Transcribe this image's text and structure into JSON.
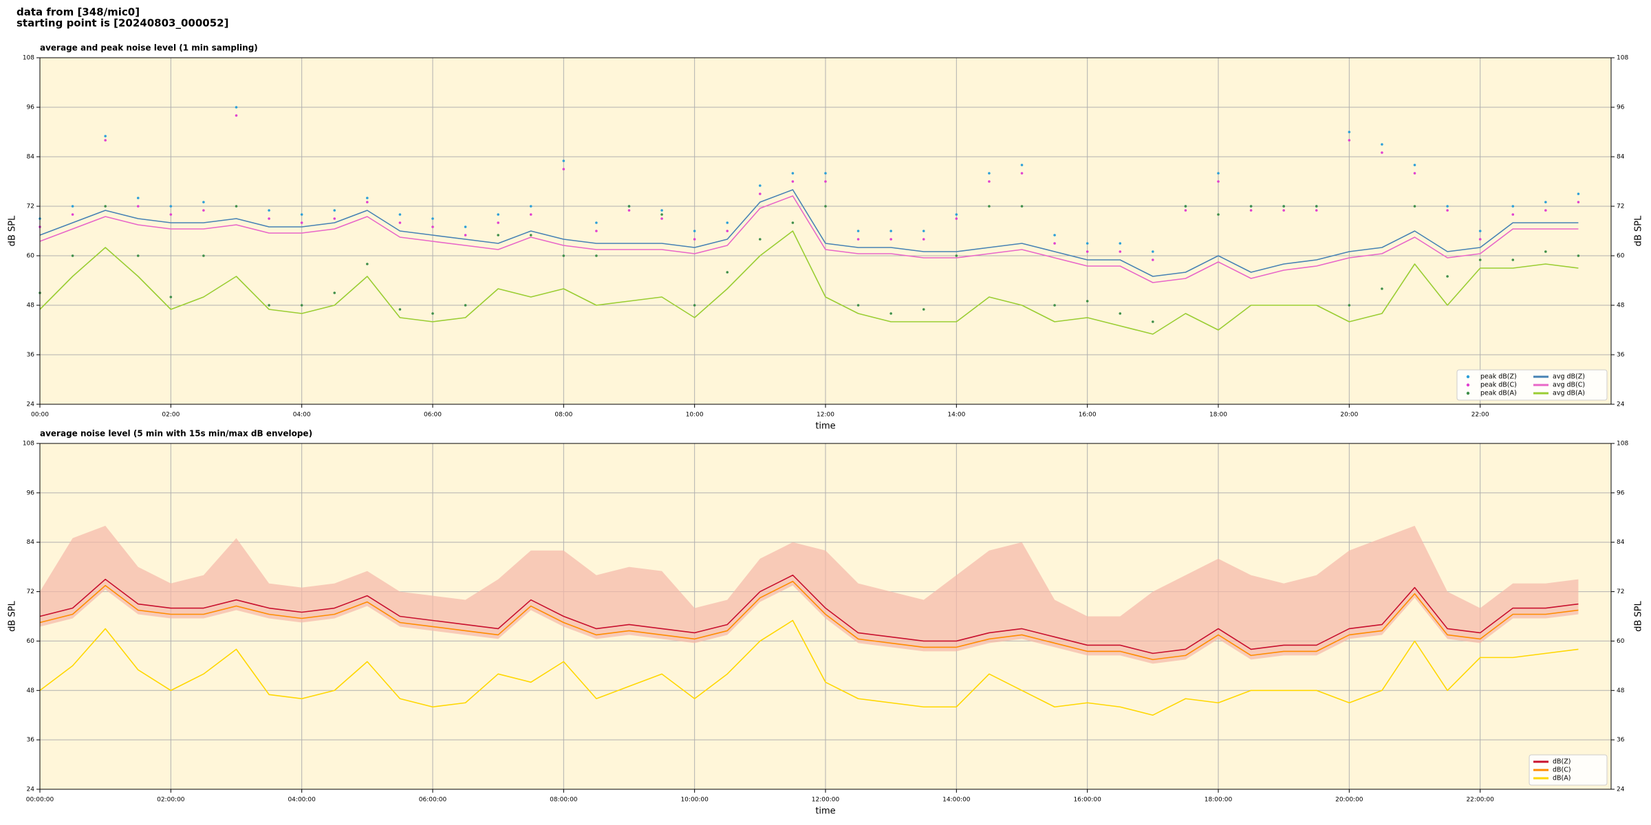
{
  "header": [
    "data from [348/mic0]",
    "starting point is [20240803_000052]"
  ],
  "chart_data": [
    {
      "type": "line",
      "title": "average and peak noise level (1 min sampling)",
      "xlabel": "time",
      "ylabel": "dB SPL",
      "y2label": "dB SPL",
      "background": "#fff6d9",
      "grid": true,
      "legend": "lower right",
      "legend_columns": 2,
      "xlim": [
        0,
        24
      ],
      "ylim": [
        24,
        108
      ],
      "xticks": [
        {
          "value": 0,
          "label": "00:00"
        },
        {
          "value": 2,
          "label": "02:00"
        },
        {
          "value": 4,
          "label": "04:00"
        },
        {
          "value": 6,
          "label": "06:00"
        },
        {
          "value": 8,
          "label": "08:00"
        },
        {
          "value": 10,
          "label": "10:00"
        },
        {
          "value": 12,
          "label": "12:00"
        },
        {
          "value": 14,
          "label": "14:00"
        },
        {
          "value": 16,
          "label": "16:00"
        },
        {
          "value": 18,
          "label": "18:00"
        },
        {
          "value": 20,
          "label": "20:00"
        },
        {
          "value": 22,
          "label": "22:00"
        }
      ],
      "yticks": [
        24,
        36,
        48,
        60,
        72,
        84,
        96,
        108
      ],
      "x": [
        0,
        0.5,
        1,
        1.5,
        2,
        2.5,
        3,
        3.5,
        4,
        4.5,
        5,
        5.5,
        6,
        6.5,
        7,
        7.5,
        8,
        8.5,
        9,
        9.5,
        10,
        10.5,
        11,
        11.5,
        12,
        12.5,
        13,
        13.5,
        14,
        14.5,
        15,
        15.5,
        16,
        16.5,
        17,
        17.5,
        18,
        18.5,
        19,
        19.5,
        20,
        20.5,
        21,
        21.5,
        22,
        22.5,
        23,
        23.5
      ],
      "series": [
        {
          "name": "peak dB(Z)",
          "mode": "markers",
          "color": "#2c9fd8",
          "values": [
            69,
            72,
            89,
            74,
            72,
            73,
            96,
            71,
            70,
            71,
            74,
            70,
            69,
            67,
            70,
            72,
            83,
            68,
            72,
            71,
            66,
            68,
            77,
            80,
            80,
            66,
            66,
            66,
            70,
            80,
            82,
            65,
            63,
            63,
            61,
            72,
            80,
            72,
            72,
            72,
            90,
            87,
            82,
            72,
            66,
            72,
            73,
            75
          ]
        },
        {
          "name": "peak dB(C)",
          "mode": "markers",
          "color": "#e040d0",
          "values": [
            67,
            70,
            88,
            72,
            70,
            71,
            94,
            69,
            68,
            69,
            73,
            68,
            67,
            65,
            68,
            70,
            81,
            66,
            71,
            69,
            64,
            66,
            75,
            78,
            78,
            64,
            64,
            64,
            69,
            78,
            80,
            63,
            61,
            61,
            59,
            71,
            78,
            71,
            71,
            71,
            88,
            85,
            80,
            71,
            64,
            70,
            71,
            73
          ]
        },
        {
          "name": "peak dB(A)",
          "mode": "markers",
          "color": "#3f8f4a",
          "values": [
            51,
            60,
            72,
            60,
            50,
            60,
            72,
            48,
            48,
            51,
            58,
            47,
            46,
            48,
            65,
            65,
            60,
            60,
            72,
            70,
            48,
            56,
            64,
            68,
            72,
            48,
            46,
            47,
            60,
            72,
            72,
            48,
            49,
            46,
            44,
            72,
            70,
            72,
            72,
            72,
            48,
            52,
            72,
            55,
            59,
            59,
            61,
            60
          ]
        },
        {
          "name": "avg dB(Z)",
          "mode": "line",
          "color": "#4682b4",
          "values": [
            65,
            68,
            71,
            69,
            68,
            68,
            69,
            67,
            67,
            68,
            71,
            66,
            65,
            64,
            63,
            66,
            64,
            63,
            63,
            63,
            62,
            64,
            73,
            76,
            63,
            62,
            62,
            61,
            61,
            62,
            63,
            61,
            59,
            59,
            55,
            56,
            60,
            56,
            58,
            59,
            61,
            62,
            66,
            61,
            62,
            68,
            68,
            68
          ]
        },
        {
          "name": "avg dB(C)",
          "mode": "line",
          "color": "#e866c8",
          "values": [
            63.5,
            66.5,
            69.5,
            67.5,
            66.5,
            66.5,
            67.5,
            65.5,
            65.5,
            66.5,
            69.5,
            64.5,
            63.5,
            62.5,
            61.5,
            64.5,
            62.5,
            61.5,
            61.5,
            61.5,
            60.5,
            62.5,
            71.5,
            74.5,
            61.5,
            60.5,
            60.5,
            59.5,
            59.5,
            60.5,
            61.5,
            59.5,
            57.5,
            57.5,
            53.5,
            54.5,
            58.5,
            54.5,
            56.5,
            57.5,
            59.5,
            60.5,
            64.5,
            59.5,
            60.5,
            66.5,
            66.5,
            66.5
          ]
        },
        {
          "name": "avg dB(A)",
          "mode": "line",
          "color": "#9acd32",
          "values": [
            47,
            55,
            62,
            55,
            47,
            50,
            55,
            47,
            46,
            48,
            55,
            45,
            44,
            45,
            52,
            50,
            52,
            48,
            49,
            50,
            45,
            52,
            60,
            66,
            50,
            46,
            44,
            44,
            44,
            50,
            48,
            44,
            45,
            43,
            41,
            46,
            42,
            48,
            48,
            48,
            44,
            46,
            58,
            48,
            57,
            57,
            58,
            57
          ]
        }
      ]
    },
    {
      "type": "line",
      "title": "average noise level (5 min with 15s min/max dB envelope)",
      "xlabel": "time",
      "ylabel": "dB SPL",
      "y2label": "dB SPL",
      "background": "#fff6d9",
      "grid": true,
      "legend": "lower right",
      "legend_columns": 1,
      "xlim": [
        0,
        24
      ],
      "ylim": [
        24,
        108
      ],
      "xticks": [
        {
          "value": 0,
          "label": "00:00:00"
        },
        {
          "value": 2,
          "label": "02:00:00"
        },
        {
          "value": 4,
          "label": "04:00:00"
        },
        {
          "value": 6,
          "label": "06:00:00"
        },
        {
          "value": 8,
          "label": "08:00:00"
        },
        {
          "value": 10,
          "label": "10:00:00"
        },
        {
          "value": 12,
          "label": "12:00:00"
        },
        {
          "value": 14,
          "label": "14:00:00"
        },
        {
          "value": 16,
          "label": "16:00:00"
        },
        {
          "value": 18,
          "label": "18:00:00"
        },
        {
          "value": 20,
          "label": "20:00:00"
        },
        {
          "value": 22,
          "label": "22:00:00"
        }
      ],
      "yticks": [
        24,
        36,
        48,
        60,
        72,
        84,
        96,
        108
      ],
      "x": [
        0,
        0.5,
        1,
        1.5,
        2,
        2.5,
        3,
        3.5,
        4,
        4.5,
        5,
        5.5,
        6,
        6.5,
        7,
        7.5,
        8,
        8.5,
        9,
        9.5,
        10,
        10.5,
        11,
        11.5,
        12,
        12.5,
        13,
        13.5,
        14,
        14.5,
        15,
        15.5,
        16,
        16.5,
        17,
        17.5,
        18,
        18.5,
        19,
        19.5,
        20,
        20.5,
        21,
        21.5,
        22,
        22.5,
        23,
        23.5
      ],
      "envelope": {
        "color": "#f5b8a8",
        "high": [
          72,
          85,
          88,
          78,
          74,
          76,
          85,
          74,
          73,
          74,
          77,
          72,
          71,
          70,
          75,
          82,
          82,
          76,
          78,
          77,
          68,
          70,
          80,
          84,
          82,
          74,
          72,
          70,
          76,
          82,
          84,
          70,
          66,
          66,
          72,
          76,
          80,
          76,
          74,
          76,
          82,
          85,
          88,
          72,
          68,
          74,
          74,
          75
        ],
        "low": [
          63.5,
          65.5,
          72.5,
          66.5,
          65.5,
          65.5,
          67.5,
          65.5,
          64.5,
          65.5,
          68.5,
          63.5,
          62.5,
          61.5,
          60.5,
          67.5,
          63.5,
          60.5,
          61.5,
          60.5,
          59.5,
          61.5,
          69.5,
          73.5,
          65.5,
          59.5,
          58.5,
          57.5,
          57.5,
          59.5,
          60.5,
          58.5,
          56.5,
          56.5,
          54.5,
          55.5,
          60.5,
          55.5,
          56.5,
          56.5,
          60.5,
          61.5,
          70.5,
          60.5,
          59.5,
          65.5,
          65.5,
          66.5
        ]
      },
      "series": [
        {
          "name": "dB(Z)",
          "mode": "line",
          "color": "#c8102e",
          "values": [
            66,
            68,
            75,
            69,
            68,
            68,
            70,
            68,
            67,
            68,
            71,
            66,
            65,
            64,
            63,
            70,
            66,
            63,
            64,
            63,
            62,
            64,
            72,
            76,
            68,
            62,
            61,
            60,
            60,
            62,
            63,
            61,
            59,
            59,
            57,
            58,
            63,
            58,
            59,
            59,
            63,
            64,
            73,
            63,
            62,
            68,
            68,
            69
          ]
        },
        {
          "name": "dB(C)",
          "mode": "line",
          "color": "#ff8c00",
          "values": [
            64.5,
            66.5,
            73.5,
            67.5,
            66.5,
            66.5,
            68.5,
            66.5,
            65.5,
            66.5,
            69.5,
            64.5,
            63.5,
            62.5,
            61.5,
            68.5,
            64.5,
            61.5,
            62.5,
            61.5,
            60.5,
            62.5,
            70.5,
            74.5,
            66.5,
            60.5,
            59.5,
            58.5,
            58.5,
            60.5,
            61.5,
            59.5,
            57.5,
            57.5,
            55.5,
            56.5,
            61.5,
            56.5,
            57.5,
            57.5,
            61.5,
            62.5,
            71.5,
            61.5,
            60.5,
            66.5,
            66.5,
            67.5
          ]
        },
        {
          "name": "dB(A)",
          "mode": "line",
          "color": "#ffd700",
          "values": [
            48,
            54,
            63,
            53,
            48,
            52,
            58,
            47,
            46,
            48,
            55,
            46,
            44,
            45,
            52,
            50,
            55,
            46,
            49,
            52,
            46,
            52,
            60,
            65,
            50,
            46,
            45,
            44,
            44,
            52,
            48,
            44,
            45,
            44,
            42,
            46,
            45,
            48,
            48,
            48,
            45,
            48,
            60,
            48,
            56,
            56,
            57,
            58
          ]
        }
      ]
    }
  ]
}
